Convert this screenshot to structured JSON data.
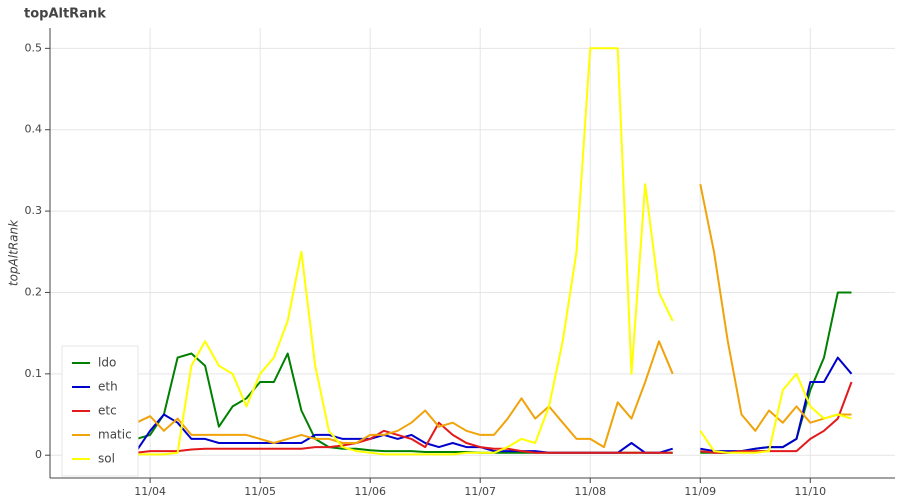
{
  "chart_data": {
    "type": "line",
    "title": "topAltRank",
    "ylabel": "topAltRank",
    "x": [
      3.875,
      4.0,
      4.125,
      4.25,
      4.375,
      4.5,
      4.625,
      4.75,
      4.875,
      5.0,
      5.125,
      5.25,
      5.375,
      5.5,
      5.625,
      5.75,
      5.875,
      6.0,
      6.125,
      6.25,
      6.375,
      6.5,
      6.625,
      6.75,
      6.875,
      7.0,
      7.125,
      7.25,
      7.375,
      7.5,
      7.625,
      7.75,
      7.875,
      8.0,
      8.125,
      8.25,
      8.375,
      8.5,
      8.625,
      8.75,
      8.875,
      9.0,
      9.125,
      9.25,
      9.375,
      9.5,
      9.625,
      9.75,
      9.875,
      10.0,
      10.125,
      10.25,
      10.375
    ],
    "series": [
      {
        "name": "ldo",
        "color": "#008000",
        "values": [
          0.02,
          0.025,
          0.05,
          0.12,
          0.125,
          0.11,
          0.035,
          0.06,
          0.07,
          0.09,
          0.09,
          0.125,
          0.055,
          0.02,
          0.01,
          0.008,
          0.008,
          0.006,
          0.005,
          0.005,
          0.005,
          0.004,
          0.004,
          0.004,
          0.004,
          0.003,
          0.003,
          0.003,
          0.003,
          0.003,
          0.003,
          0.003,
          0.003,
          0.003,
          0.003,
          0.003,
          0.003,
          0.003,
          0.003,
          0.003,
          null,
          0.003,
          0.003,
          0.003,
          0.005,
          0.008,
          0.01,
          0.01,
          0.02,
          0.08,
          0.12,
          0.2,
          0.2
        ]
      },
      {
        "name": "eth",
        "color": "#0000cd",
        "values": [
          0.005,
          0.03,
          0.05,
          0.04,
          0.02,
          0.02,
          0.015,
          0.015,
          0.015,
          0.015,
          0.015,
          0.015,
          0.015,
          0.025,
          0.025,
          0.02,
          0.02,
          0.02,
          0.025,
          0.02,
          0.025,
          0.015,
          0.01,
          0.015,
          0.01,
          0.01,
          0.005,
          0.005,
          0.005,
          0.005,
          0.003,
          0.003,
          0.003,
          0.003,
          0.003,
          0.003,
          0.015,
          0.003,
          0.003,
          0.008,
          null,
          0.008,
          0.005,
          0.005,
          0.005,
          0.008,
          0.01,
          0.01,
          0.02,
          0.09,
          0.09,
          0.12,
          0.1
        ]
      },
      {
        "name": "etc",
        "color": "#e31a1c",
        "values": [
          0.003,
          0.005,
          0.005,
          0.005,
          0.007,
          0.008,
          0.008,
          0.008,
          0.008,
          0.008,
          0.008,
          0.008,
          0.008,
          0.01,
          0.01,
          0.012,
          0.015,
          0.02,
          0.03,
          0.025,
          0.02,
          0.01,
          0.04,
          0.025,
          0.015,
          0.01,
          0.008,
          0.008,
          0.005,
          0.003,
          0.003,
          0.003,
          0.003,
          0.003,
          0.003,
          0.003,
          0.003,
          0.003,
          0.003,
          0.003,
          null,
          0.005,
          0.003,
          0.003,
          0.005,
          0.005,
          0.005,
          0.005,
          0.005,
          0.02,
          0.03,
          0.045,
          0.09
        ]
      },
      {
        "name": "matic",
        "color": "#f0a30a",
        "values": [
          0.04,
          0.048,
          0.03,
          0.045,
          0.025,
          0.025,
          0.025,
          0.025,
          0.025,
          0.02,
          0.015,
          0.02,
          0.025,
          0.02,
          0.02,
          0.015,
          0.015,
          0.025,
          0.025,
          0.03,
          0.04,
          0.055,
          0.035,
          0.04,
          0.03,
          0.025,
          0.025,
          0.045,
          0.07,
          0.045,
          0.06,
          0.04,
          0.02,
          0.02,
          0.01,
          0.065,
          0.045,
          0.09,
          0.14,
          0.1,
          null,
          0.333,
          0.25,
          0.14,
          0.05,
          0.03,
          0.055,
          0.04,
          0.06,
          0.04,
          0.045,
          0.05,
          0.05
        ]
      },
      {
        "name": "sol",
        "color": "#ffff00",
        "values": [
          0.001,
          0.001,
          0.001,
          0.003,
          0.11,
          0.14,
          0.11,
          0.1,
          0.06,
          0.1,
          0.12,
          0.165,
          0.25,
          0.11,
          0.03,
          0.01,
          0.005,
          0.003,
          0.001,
          0.001,
          0.001,
          0.001,
          0.001,
          0.001,
          0.003,
          0.003,
          0.003,
          0.01,
          0.02,
          0.015,
          0.06,
          0.14,
          0.25,
          0.5,
          0.5,
          0.5,
          0.1,
          0.333,
          0.2,
          0.165,
          null,
          0.03,
          0.005,
          0.003,
          0.003,
          0.003,
          0.005,
          0.08,
          0.1,
          0.06,
          0.045,
          0.05,
          0.045
        ]
      }
    ],
    "xlim": [
      3.09,
      10.77
    ],
    "xticks": [
      {
        "value": 4,
        "label": "11/04"
      },
      {
        "value": 5,
        "label": "11/05"
      },
      {
        "value": 6,
        "label": "11/06"
      },
      {
        "value": 7,
        "label": "11/07"
      },
      {
        "value": 8,
        "label": "11/08"
      },
      {
        "value": 9,
        "label": "11/09"
      },
      {
        "value": 10,
        "label": "11/10"
      }
    ],
    "ylim": [
      -0.028,
      0.525
    ],
    "yticks": [
      0,
      0.1,
      0.2,
      0.3,
      0.4,
      0.5
    ],
    "grid": true,
    "legend": "bottom-left"
  }
}
